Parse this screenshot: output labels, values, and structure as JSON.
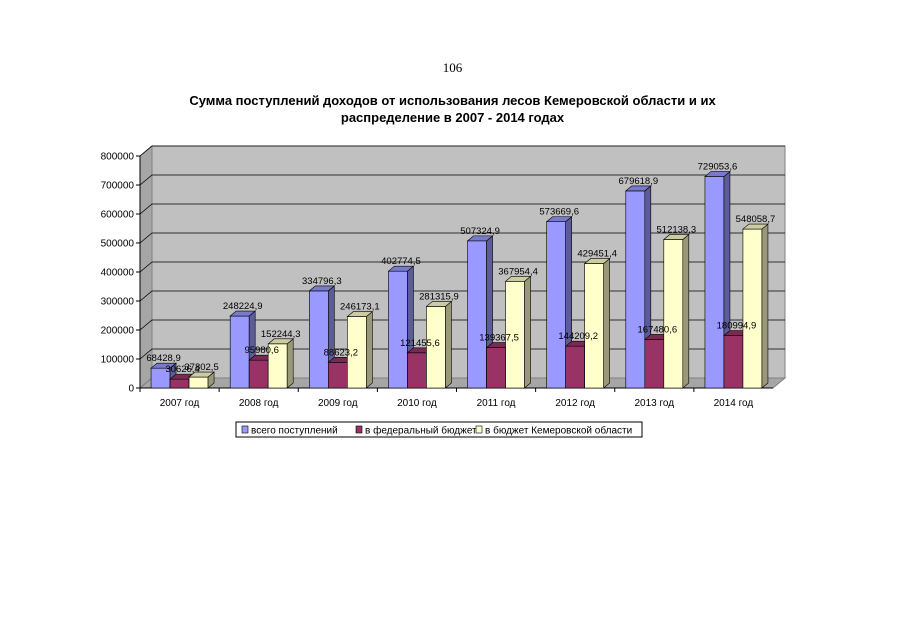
{
  "page": {
    "number": "106"
  },
  "chart_data": {
    "type": "bar",
    "title": "Сумма поступлений доходов от использования лесов Кемеровской области и их распределение в 2007 - 2014 годах",
    "xlabel": "",
    "ylabel": "",
    "ylim": [
      0,
      800000
    ],
    "yticks": [
      "0",
      "100000",
      "200000",
      "300000",
      "400000",
      "500000",
      "600000",
      "700000",
      "800000"
    ],
    "categories": [
      "2007 год",
      "2008 год",
      "2009 год",
      "2010 год",
      "2011 год",
      "2012 год",
      "2013 год",
      "2014 год"
    ],
    "grid": true,
    "legend_position": "bottom",
    "series": [
      {
        "name": "всего поступлений",
        "color": "#9999FF",
        "values": [
          68428.9,
          248224.9,
          334796.3,
          402774.5,
          507324.9,
          573669.6,
          679618.9,
          729053.6
        ],
        "labels": [
          "68428,9",
          "248224,9",
          "334796,3",
          "402774,5",
          "507324,9",
          "573669,6",
          "679618,9",
          "729053,6"
        ]
      },
      {
        "name": "в федеральный бюджет",
        "color": "#993366",
        "values": [
          30626.4,
          95980.6,
          88623.2,
          121455.6,
          139367.5,
          144209.2,
          167480.6,
          180994.9
        ],
        "labels": [
          "30626,4",
          "95980,6",
          "88623,2",
          "121455,6",
          "139367,5",
          "144209,2",
          "167480,6",
          "180994,9"
        ]
      },
      {
        "name": "в бюджет Кемеровской области",
        "color": "#FFFFCC",
        "values": [
          37802.5,
          152244.3,
          246173.1,
          281315.9,
          367954.4,
          429451.4,
          512138.3,
          548058.7
        ],
        "labels": [
          "37802,5",
          "152244,3",
          "246173,1",
          "281315,9",
          "367954,4",
          "429451,4",
          "512138,3",
          "548058,7"
        ]
      }
    ]
  }
}
